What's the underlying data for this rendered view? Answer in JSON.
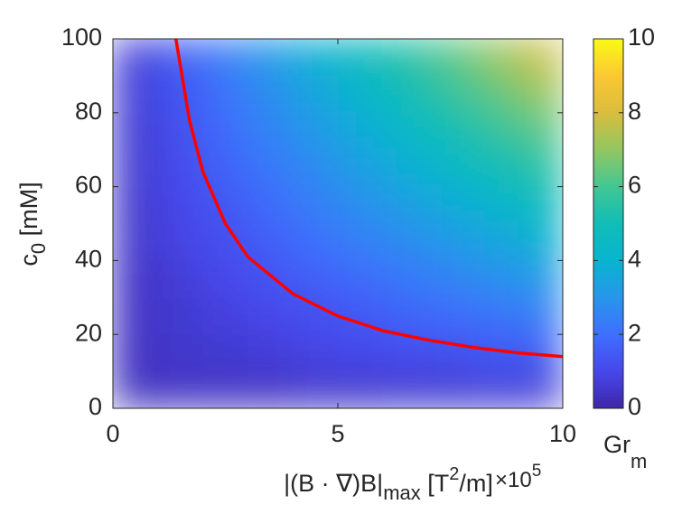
{
  "chart_data": {
    "type": "heatmap",
    "xlabel_parts": [
      "|(B · ∇)B|",
      "max",
      " [T",
      "2",
      "/m]"
    ],
    "ylabel_parts": [
      "c",
      "0",
      " [mM]"
    ],
    "x_multiplier_parts": [
      "×10",
      "5"
    ],
    "xlim": [
      0,
      10
    ],
    "xticks": [
      0,
      5,
      10
    ],
    "ylim": [
      0,
      100
    ],
    "yticks": [
      0,
      20,
      40,
      60,
      80,
      100
    ],
    "heatmap": {
      "x": [
        0.5,
        1.5,
        2.5,
        3.5,
        4.5,
        5.5,
        6.5,
        7.5,
        8.5,
        9.5
      ],
      "y": [
        5,
        15,
        25,
        35,
        45,
        55,
        65,
        75,
        85,
        95
      ],
      "z": [
        [
          0.3,
          0.4,
          0.4,
          0.4,
          0.5,
          0.5,
          0.6,
          0.6,
          0.7,
          0.7
        ],
        [
          0.4,
          0.5,
          0.6,
          0.7,
          0.9,
          1.0,
          1.1,
          1.2,
          1.4,
          1.5
        ],
        [
          0.4,
          0.6,
          0.8,
          1.0,
          1.2,
          1.4,
          1.7,
          1.9,
          2.1,
          2.3
        ],
        [
          0.4,
          0.7,
          1.0,
          1.3,
          1.6,
          1.9,
          2.2,
          2.5,
          2.8,
          3.1
        ],
        [
          0.5,
          0.9,
          1.2,
          1.6,
          2.0,
          2.4,
          2.7,
          3.1,
          3.5,
          3.9
        ],
        [
          0.5,
          1.0,
          1.4,
          1.9,
          2.4,
          2.8,
          3.3,
          3.7,
          4.2,
          4.7
        ],
        [
          0.6,
          1.1,
          1.7,
          2.2,
          2.7,
          3.3,
          3.8,
          4.4,
          4.9,
          5.4
        ],
        [
          0.6,
          1.2,
          1.9,
          2.5,
          3.1,
          3.7,
          4.4,
          5.0,
          5.6,
          6.2
        ],
        [
          0.7,
          1.4,
          2.1,
          2.8,
          3.5,
          4.2,
          4.9,
          5.6,
          6.3,
          7.0
        ],
        [
          0.7,
          1.5,
          2.3,
          3.1,
          3.9,
          4.7,
          5.4,
          6.2,
          7.0,
          7.8
        ]
      ]
    },
    "contour": {
      "color": "#ff0000",
      "x": [
        1.4,
        1.7,
        2,
        2.5,
        3,
        4,
        5,
        6,
        7,
        8,
        9,
        10
      ],
      "y": [
        100,
        78,
        64,
        50,
        41,
        31,
        25,
        21,
        18.5,
        16.5,
        15,
        14
      ]
    },
    "colorbar": {
      "lim": [
        0,
        10
      ],
      "ticks": [
        0,
        2,
        4,
        6,
        8,
        10
      ],
      "label_parts": [
        "Gr",
        "m"
      ]
    },
    "colormap": [
      "#3e26a8",
      "#4747eb",
      "#3e6ffe",
      "#2796eb",
      "#08b4d0",
      "#10bdb7",
      "#42c793",
      "#92c760",
      "#d9bd3d",
      "#fcc733",
      "#f9fb15"
    ]
  }
}
